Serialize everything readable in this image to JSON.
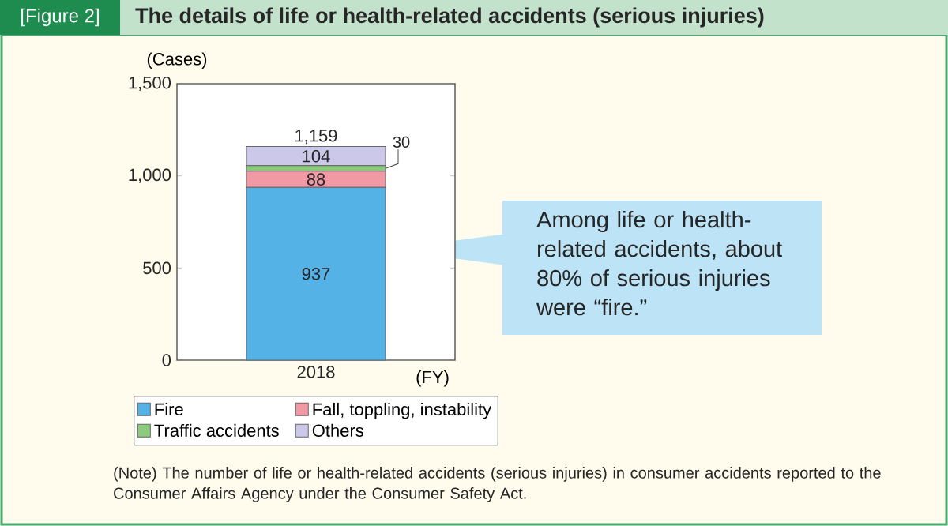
{
  "chart_data": {
    "type": "bar",
    "title": "The details of life or health-related accidents (serious injuries)",
    "subtitle": "[Figure 2]",
    "ylabel": "(Cases)",
    "xlabel": "(FY)",
    "categories": [
      "2018"
    ],
    "series": [
      {
        "name": "Fire",
        "color": "#54b2e6",
        "values": [
          937
        ]
      },
      {
        "name": "Fall, toppling, instability",
        "color": "#f19aa6",
        "values": [
          88
        ]
      },
      {
        "name": "Traffic accidents",
        "color": "#8ccb7c",
        "values": [
          30
        ]
      },
      {
        "name": "Others",
        "color": "#ccc8ea",
        "values": [
          104
        ]
      }
    ],
    "stacked": true,
    "data_labels": true,
    "totals": [
      "1,159"
    ],
    "ylim": [
      0,
      1500
    ],
    "yticks": [
      0,
      500,
      {
        "value": 1000,
        "label": "1,000"
      },
      {
        "value": 1500,
        "label": "1,500"
      }
    ],
    "grid": false,
    "legend": "bottom",
    "annotations": [
      "Among life or health-related accidents, about 80% of serious injuries were “fire.”",
      "(Note) The number of life or health-related accidents (serious injuries) in consumer accidents reported to the Consumer Affairs Agency under the Consumer Safety Act."
    ]
  }
}
